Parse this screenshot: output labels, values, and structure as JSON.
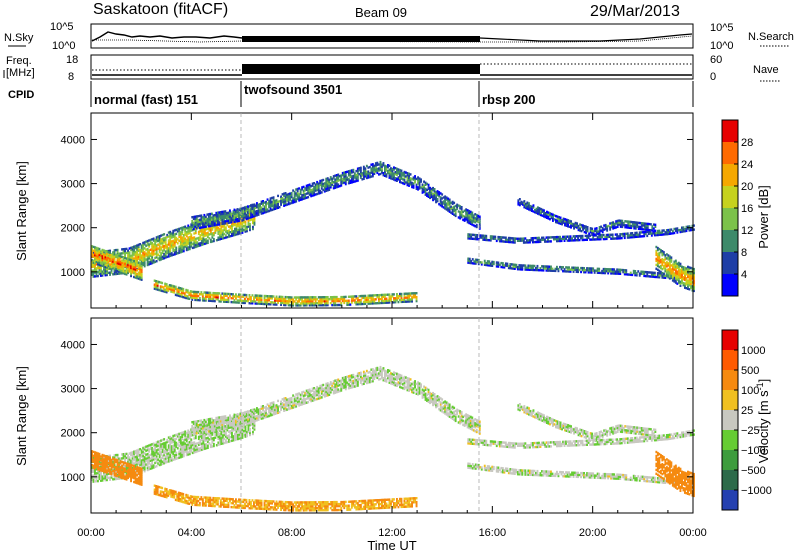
{
  "header": {
    "station": "Saskatoon (fitACF)",
    "beam": "Beam 09",
    "date": "29/Mar/2013"
  },
  "strips": {
    "nsky_label": "N.Sky",
    "nsearch_label": "N.Search",
    "noise_ticks_left": [
      "10^5",
      "10^0"
    ],
    "noise_ticks_right": [
      "10^5",
      "10^0"
    ],
    "freq_label_1": "Freq.",
    "freq_label_2": "[MHz]",
    "freq_ticks": [
      "18",
      "8"
    ],
    "nave_label": "Nave",
    "nave_ticks": [
      "60",
      "0"
    ],
    "cpid_label": "CPID",
    "modes": [
      {
        "label": "normal (fast) 151",
        "start": 0,
        "end": 6
      },
      {
        "label": "twofsound 3501",
        "start": 6,
        "end": 15.5
      },
      {
        "label": "rbsp 200",
        "start": 15.5,
        "end": 24
      }
    ]
  },
  "colorbars": {
    "power": {
      "label": "Power [dB]",
      "ticks": [
        "28",
        "24",
        "20",
        "16",
        "12",
        "8",
        "4"
      ],
      "colors": [
        "#0000ff",
        "#1e3ea6",
        "#3d8a6a",
        "#7cc24a",
        "#c6d21e",
        "#f5a800",
        "#ff6a00",
        "#e60000"
      ]
    },
    "velocity": {
      "label": "Velocity [m s",
      "label_sup": "-1",
      "label_end": "]",
      "ticks": [
        "1000",
        "500",
        "100",
        "25",
        "−25",
        "−100",
        "−500",
        "−1000"
      ],
      "colors": [
        "#2440b0",
        "#2d6a4a",
        "#3d9c3d",
        "#66cc33",
        "#c8c8c0",
        "#f0c020",
        "#f58a10",
        "#ff5a00",
        "#e60000"
      ]
    }
  },
  "chart_data": [
    {
      "type": "heatmap",
      "title": "Power",
      "xlabel": "",
      "ylabel": "Slant Range [km]",
      "x_range": [
        0,
        24
      ],
      "y_range": [
        180,
        4600
      ],
      "y_ticks": [
        "4000",
        "3000",
        "2000",
        "1000"
      ],
      "colorbar_range_dB": [
        0,
        32
      ]
    },
    {
      "type": "heatmap",
      "title": "Velocity",
      "xlabel": "Time UT",
      "ylabel": "Slant Range [km]",
      "x_range": [
        0,
        24
      ],
      "y_range": [
        180,
        4600
      ],
      "x_ticks": [
        "00:00",
        "04:00",
        "08:00",
        "12:00",
        "16:00",
        "20:00",
        "00:00"
      ],
      "y_ticks": [
        "4000",
        "3000",
        "2000",
        "1000"
      ],
      "colorbar_range_ms": [
        -1000,
        1000
      ]
    }
  ]
}
